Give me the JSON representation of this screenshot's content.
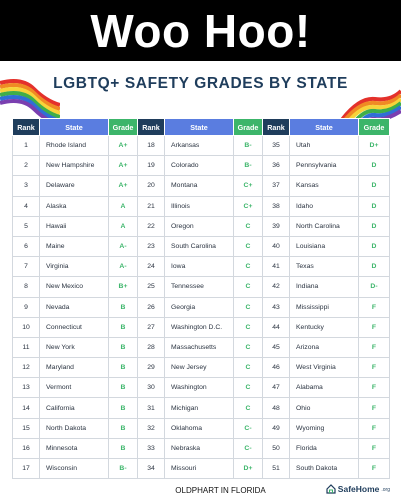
{
  "banner": {
    "text": "Woo Hoo!"
  },
  "graphic": {
    "title": "LGBTQ+ SAFETY GRADES BY STATE",
    "headers": {
      "rank": "Rank",
      "state": "State",
      "grade": "Grade"
    },
    "rows": [
      [
        {
          "rank": "1",
          "state": "Rhode Island",
          "grade": "A+"
        },
        {
          "rank": "18",
          "state": "Arkansas",
          "grade": "B-"
        },
        {
          "rank": "35",
          "state": "Utah",
          "grade": "D+"
        }
      ],
      [
        {
          "rank": "2",
          "state": "New Hampshire",
          "grade": "A+"
        },
        {
          "rank": "19",
          "state": "Colorado",
          "grade": "B-"
        },
        {
          "rank": "36",
          "state": "Pennsylvania",
          "grade": "D"
        }
      ],
      [
        {
          "rank": "3",
          "state": "Delaware",
          "grade": "A+"
        },
        {
          "rank": "20",
          "state": "Montana",
          "grade": "C+"
        },
        {
          "rank": "37",
          "state": "Kansas",
          "grade": "D"
        }
      ],
      [
        {
          "rank": "4",
          "state": "Alaska",
          "grade": "A"
        },
        {
          "rank": "21",
          "state": "Illinois",
          "grade": "C+"
        },
        {
          "rank": "38",
          "state": "Idaho",
          "grade": "D"
        }
      ],
      [
        {
          "rank": "5",
          "state": "Hawaii",
          "grade": "A"
        },
        {
          "rank": "22",
          "state": "Oregon",
          "grade": "C"
        },
        {
          "rank": "39",
          "state": "North Carolina",
          "grade": "D"
        }
      ],
      [
        {
          "rank": "6",
          "state": "Maine",
          "grade": "A-"
        },
        {
          "rank": "23",
          "state": "South Carolina",
          "grade": "C"
        },
        {
          "rank": "40",
          "state": "Louisiana",
          "grade": "D"
        }
      ],
      [
        {
          "rank": "7",
          "state": "Virginia",
          "grade": "A-"
        },
        {
          "rank": "24",
          "state": "Iowa",
          "grade": "C"
        },
        {
          "rank": "41",
          "state": "Texas",
          "grade": "D"
        }
      ],
      [
        {
          "rank": "8",
          "state": "New Mexico",
          "grade": "B+"
        },
        {
          "rank": "25",
          "state": "Tennessee",
          "grade": "C"
        },
        {
          "rank": "42",
          "state": "Indiana",
          "grade": "D-"
        }
      ],
      [
        {
          "rank": "9",
          "state": "Nevada",
          "grade": "B"
        },
        {
          "rank": "26",
          "state": "Georgia",
          "grade": "C"
        },
        {
          "rank": "43",
          "state": "Mississippi",
          "grade": "F"
        }
      ],
      [
        {
          "rank": "10",
          "state": "Connecticut",
          "grade": "B"
        },
        {
          "rank": "27",
          "state": "Washington D.C.",
          "grade": "C"
        },
        {
          "rank": "44",
          "state": "Kentucky",
          "grade": "F"
        }
      ],
      [
        {
          "rank": "11",
          "state": "New York",
          "grade": "B"
        },
        {
          "rank": "28",
          "state": "Massachusetts",
          "grade": "C"
        },
        {
          "rank": "45",
          "state": "Arizona",
          "grade": "F"
        }
      ],
      [
        {
          "rank": "12",
          "state": "Maryland",
          "grade": "B"
        },
        {
          "rank": "29",
          "state": "New Jersey",
          "grade": "C"
        },
        {
          "rank": "46",
          "state": "West Virginia",
          "grade": "F"
        }
      ],
      [
        {
          "rank": "13",
          "state": "Vermont",
          "grade": "B"
        },
        {
          "rank": "30",
          "state": "Washington",
          "grade": "C"
        },
        {
          "rank": "47",
          "state": "Alabama",
          "grade": "F"
        }
      ],
      [
        {
          "rank": "14",
          "state": "California",
          "grade": "B"
        },
        {
          "rank": "31",
          "state": "Michigan",
          "grade": "C"
        },
        {
          "rank": "48",
          "state": "Ohio",
          "grade": "F"
        }
      ],
      [
        {
          "rank": "15",
          "state": "North Dakota",
          "grade": "B"
        },
        {
          "rank": "32",
          "state": "Oklahoma",
          "grade": "C-"
        },
        {
          "rank": "49",
          "state": "Wyoming",
          "grade": "F"
        }
      ],
      [
        {
          "rank": "16",
          "state": "Minnesota",
          "grade": "B"
        },
        {
          "rank": "33",
          "state": "Nebraska",
          "grade": "C-"
        },
        {
          "rank": "50",
          "state": "Florida",
          "grade": "F"
        }
      ],
      [
        {
          "rank": "17",
          "state": "Wisconsin",
          "grade": "B-"
        },
        {
          "rank": "34",
          "state": "Missouri",
          "grade": "D+"
        },
        {
          "rank": "51",
          "state": "South Dakota",
          "grade": "F"
        }
      ]
    ],
    "footer_credit": "OLDPHART IN FLORIDA",
    "logo": {
      "name": "SafeHome",
      "suffix": ".org",
      "icon": "house-shield-icon"
    }
  },
  "colors": {
    "banner_bg": "#000000",
    "title": "#1f3d5c",
    "rank_header": "#1f3d5c",
    "state_header": "#5a7de0",
    "grade_header": "#3cb56a",
    "grade_text": "#3cb56a"
  }
}
